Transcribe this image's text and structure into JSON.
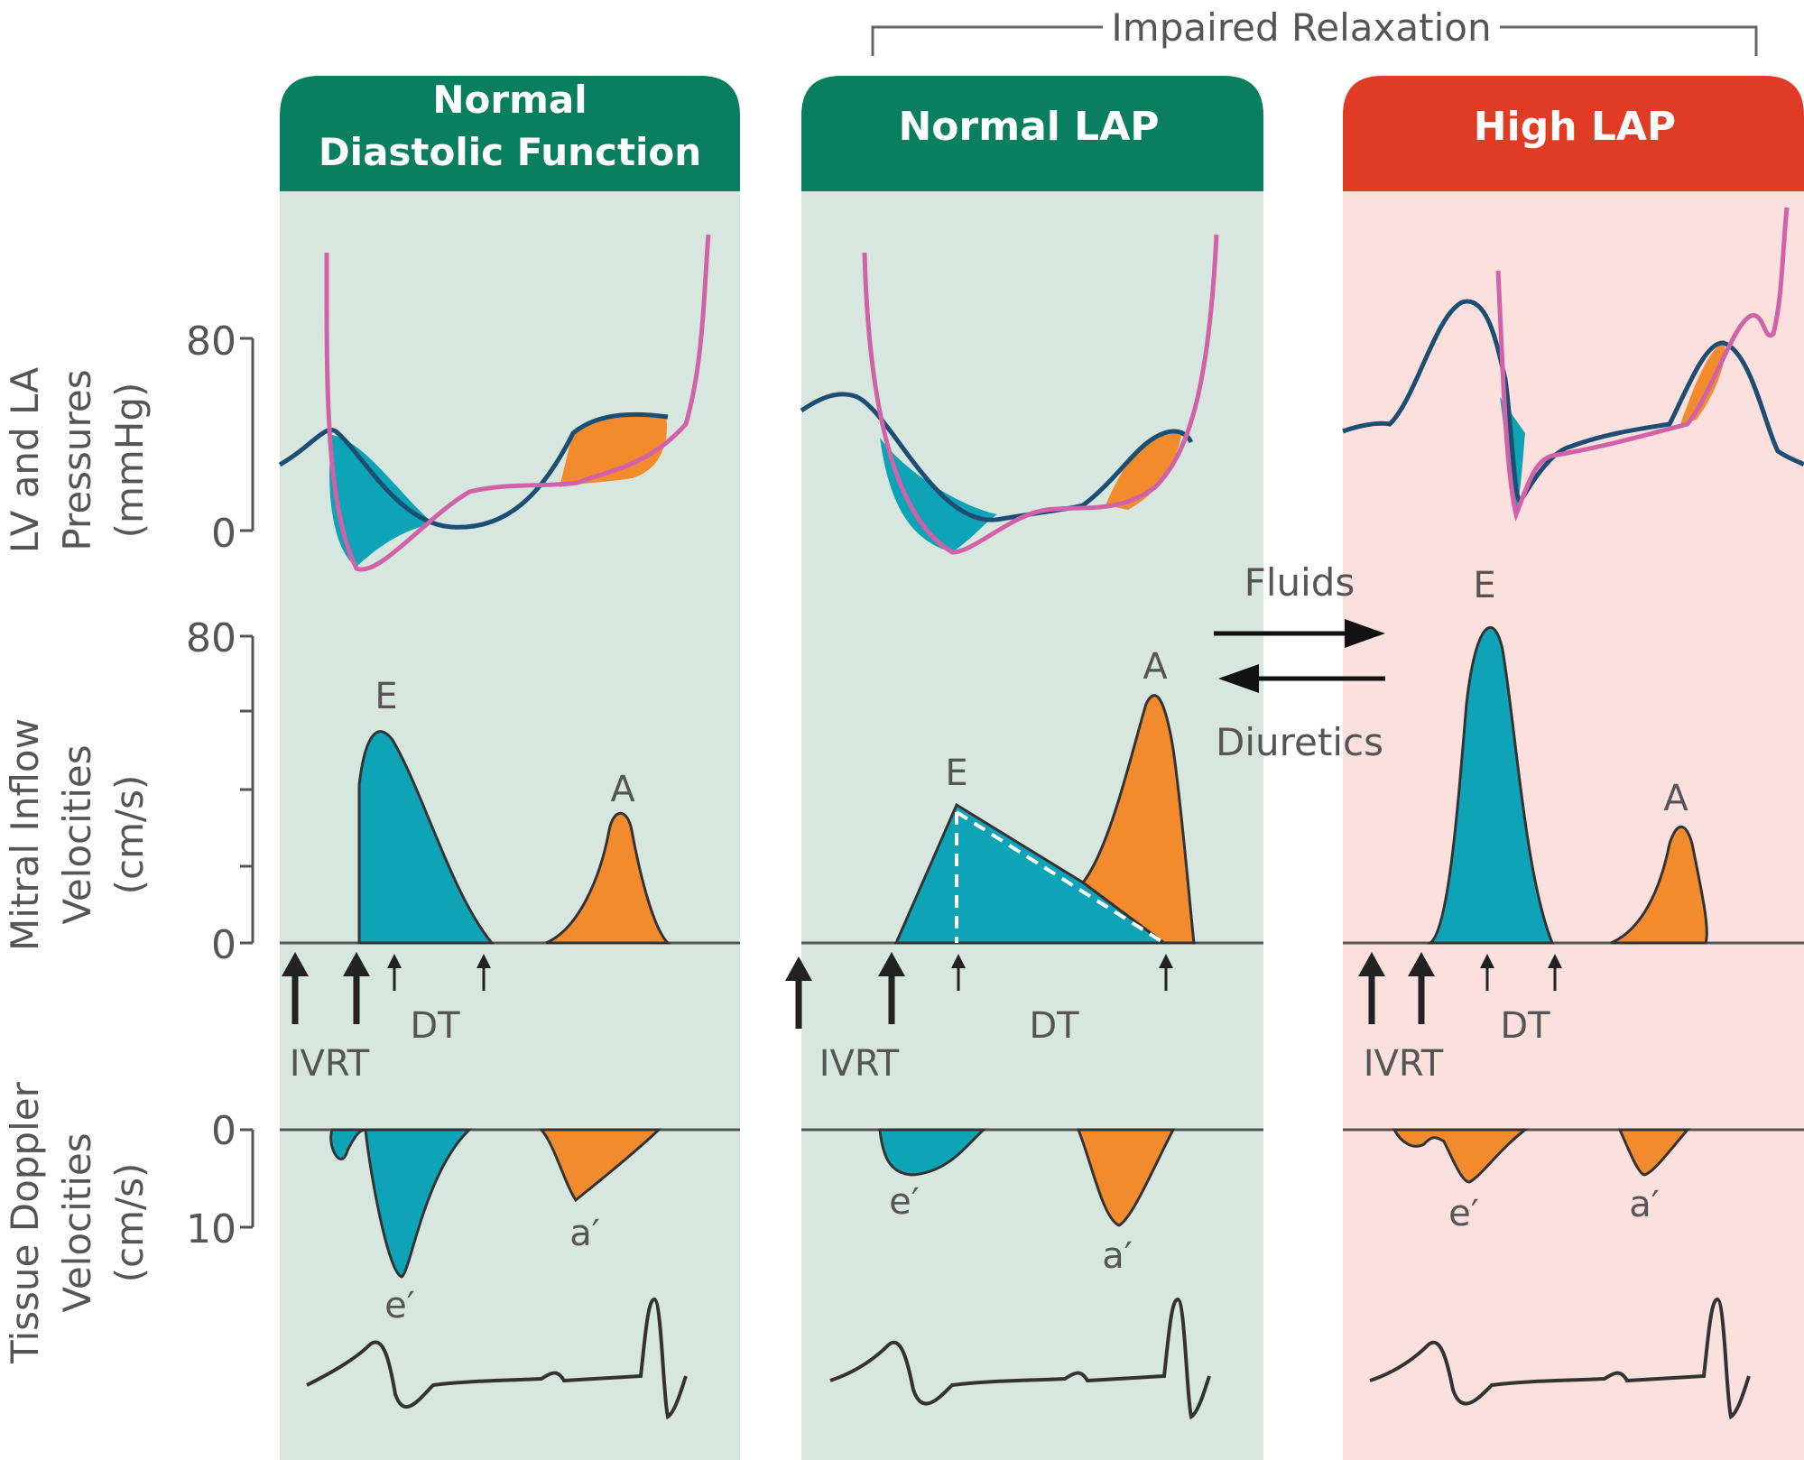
{
  "bracket_label": "Impaired Relaxation",
  "panels": [
    {
      "title_line1": "Normal",
      "title_line2": "Diastolic Function"
    },
    {
      "title": "Normal LAP"
    },
    {
      "title": "High LAP"
    }
  ],
  "y_axes": {
    "pressure": {
      "line1": "LV and LA",
      "line2": "Pressures",
      "line3": "(mmHg)",
      "ticks": [
        "80",
        "0"
      ]
    },
    "mitral": {
      "line1": "Mitral Inflow",
      "line2": "Velocities",
      "line3": "(cm/s)",
      "ticks": [
        "80",
        "0"
      ]
    },
    "tissue": {
      "line1": "Tissue Doppler",
      "line2": "Velocities",
      "line3": "(cm/s)",
      "ticks": [
        "0",
        "10"
      ]
    }
  },
  "wave_labels": {
    "e_wave": "E",
    "a_wave": "A",
    "e_prime": "e′",
    "a_prime": "a′",
    "ivrt": "IVRT",
    "dt": "DT"
  },
  "arrows": {
    "fluids": "Fluids",
    "diuretics": "Diuretics"
  },
  "colors": {
    "green_header": "#0a7f5f",
    "red_header": "#e03b24",
    "green_bg": "#d7e7df",
    "red_bg": "#fbe0de",
    "teal_fill": "#0fa3b8",
    "orange_fill": "#f28a2e",
    "lv_line": "#d262a8",
    "la_line": "#1c4e74"
  }
}
